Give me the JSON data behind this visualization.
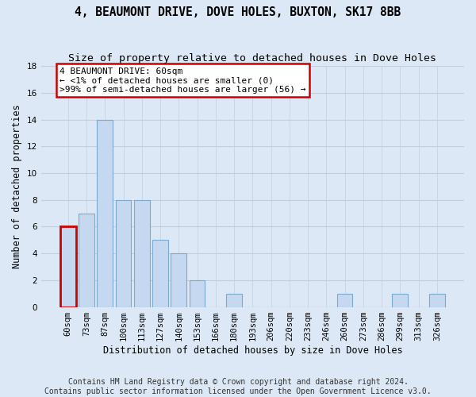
{
  "title": "4, BEAUMONT DRIVE, DOVE HOLES, BUXTON, SK17 8BB",
  "subtitle": "Size of property relative to detached houses in Dove Holes",
  "xlabel": "Distribution of detached houses by size in Dove Holes",
  "ylabel": "Number of detached properties",
  "categories": [
    "60sqm",
    "73sqm",
    "87sqm",
    "100sqm",
    "113sqm",
    "127sqm",
    "140sqm",
    "153sqm",
    "166sqm",
    "180sqm",
    "193sqm",
    "206sqm",
    "220sqm",
    "233sqm",
    "246sqm",
    "260sqm",
    "273sqm",
    "286sqm",
    "299sqm",
    "313sqm",
    "326sqm"
  ],
  "values": [
    6,
    7,
    14,
    8,
    8,
    5,
    4,
    2,
    0,
    1,
    0,
    0,
    0,
    0,
    0,
    1,
    0,
    0,
    1,
    0,
    1
  ],
  "highlight_index": 0,
  "bar_color": "#c5d8f0",
  "bar_edge_color": "#7aaad0",
  "highlight_bar_edge_color": "#cc0000",
  "annotation_box_text": "4 BEAUMONT DRIVE: 60sqm\n← <1% of detached houses are smaller (0)\n>99% of semi-detached houses are larger (56) →",
  "annotation_box_color": "#ffffff",
  "annotation_box_edge_color": "#cc0000",
  "annotation_fontsize": 8,
  "bg_color": "#dce8f5",
  "plot_bg_color": "#dce8f5",
  "grid_color": "#c0cfdf",
  "ylim": [
    0,
    18
  ],
  "yticks": [
    0,
    2,
    4,
    6,
    8,
    10,
    12,
    14,
    16,
    18
  ],
  "footer_line1": "Contains HM Land Registry data © Crown copyright and database right 2024.",
  "footer_line2": "Contains public sector information licensed under the Open Government Licence v3.0.",
  "title_fontsize": 10.5,
  "subtitle_fontsize": 9.5,
  "xlabel_fontsize": 8.5,
  "ylabel_fontsize": 8.5,
  "tick_fontsize": 7.5,
  "footer_fontsize": 7
}
